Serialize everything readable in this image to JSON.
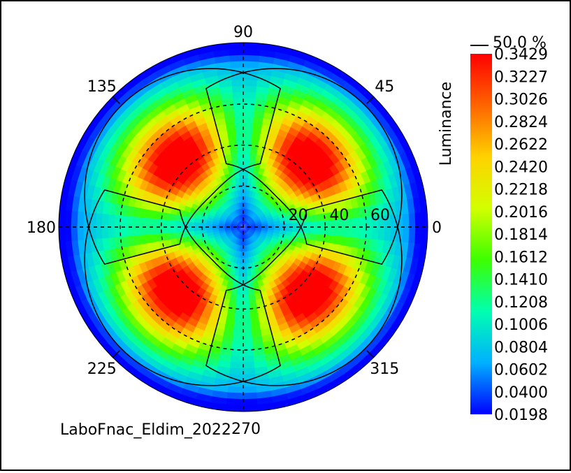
{
  "chart_data": {
    "type": "polar-heatmap",
    "colorbar_title": "Luminance",
    "contour_legend_label": "50.0 %",
    "colorbar_ticks": [
      "0.3429",
      "0.3227",
      "0.3026",
      "0.2824",
      "0.2622",
      "0.2420",
      "0.2218",
      "0.2016",
      "0.1814",
      "0.1612",
      "0.1410",
      "0.1208",
      "0.1006",
      "0.0804",
      "0.0602",
      "0.0400",
      "0.0198"
    ],
    "value_range": [
      0.0198,
      0.3429
    ],
    "azimuth_labels": [
      {
        "angle": 0,
        "label": "0"
      },
      {
        "angle": 45,
        "label": "45"
      },
      {
        "angle": 90,
        "label": "90"
      },
      {
        "angle": 135,
        "label": "135"
      },
      {
        "angle": 180,
        "label": "180"
      },
      {
        "angle": 225,
        "label": "225"
      },
      {
        "angle": 270,
        "label": "270"
      },
      {
        "angle": 315,
        "label": "315"
      }
    ],
    "radial_labels": [
      "20",
      "40",
      "60"
    ],
    "radial_values": [
      20,
      40,
      60
    ],
    "max_radius": 90,
    "peak_azimuths": [
      45,
      135,
      225,
      315
    ],
    "peak_theta": 45,
    "peak_value": 0.3429,
    "center_value": 0.0198,
    "contour_level_fraction": 0.5,
    "footer_text": "LaboFnac_Eldim_2022"
  },
  "colors": {
    "scale": [
      "#0000ff",
      "#00b0ff",
      "#00ffb0",
      "#3cff00",
      "#d2ff00",
      "#ffd200",
      "#ff6400",
      "#ff0000"
    ]
  }
}
